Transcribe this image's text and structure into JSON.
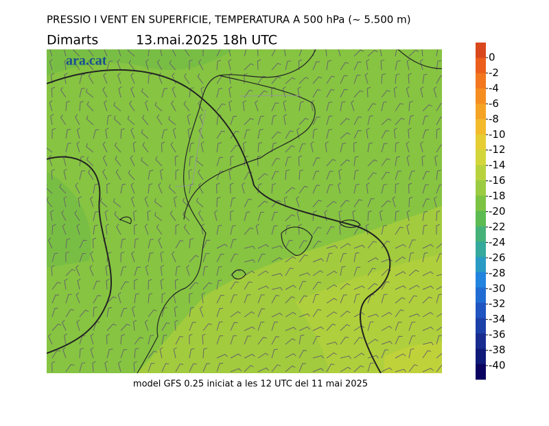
{
  "header": {
    "title": "PRESSIO I VENT EN SUPERFICIE, TEMPERATURA A 500 hPa (~ 5.500 m)",
    "day": "Dimarts",
    "date": "13.mai.2025 18h UTC"
  },
  "logo": "ara.cat",
  "footer": "model GFS 0.25 iniciat a les 12 UTC del 11 mai 2025",
  "colorbar": {
    "ticks": [
      0,
      -2,
      -4,
      -6,
      -8,
      -10,
      -12,
      -14,
      -16,
      -18,
      -20,
      -22,
      -24,
      -26,
      -28,
      -30,
      -32,
      -34,
      -36,
      -38,
      -40
    ],
    "colors": [
      "#d9481c",
      "#ec5e1c",
      "#f2771e",
      "#f58d20",
      "#f5a324",
      "#f3bb2c",
      "#e6cd34",
      "#d3d63a",
      "#b8d23e",
      "#9bcb42",
      "#7cc344",
      "#5cbb52",
      "#46b27a",
      "#35a99c",
      "#2a9bc4",
      "#2284de",
      "#216cd2",
      "#2054c0",
      "#1b40a8",
      "#182c90",
      "#101a78",
      "#0a0460"
    ]
  }
}
